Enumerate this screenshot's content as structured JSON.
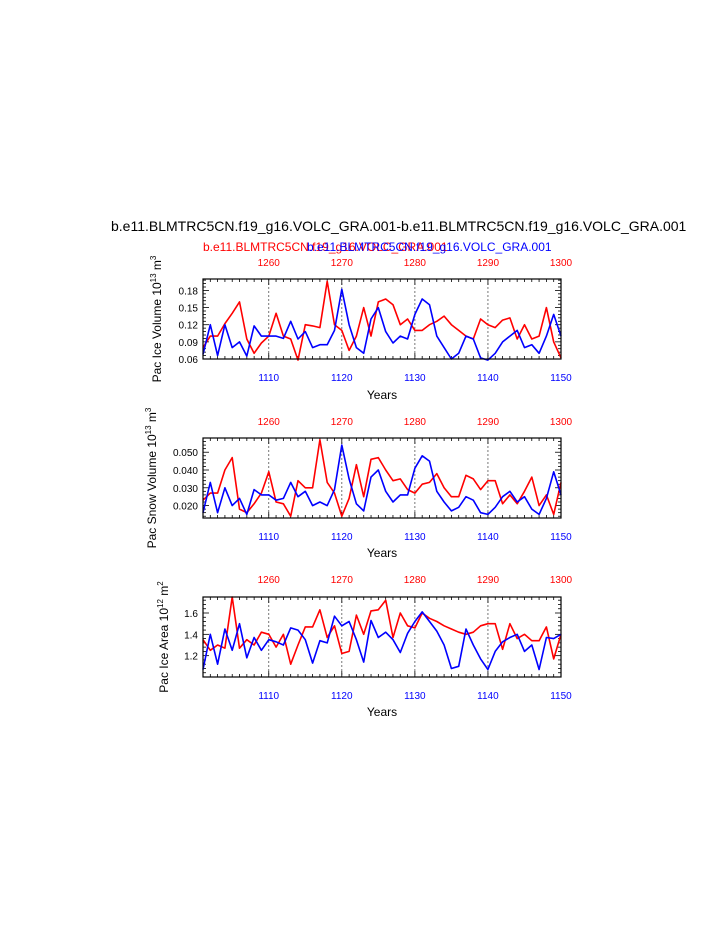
{
  "figure": {
    "title": "b.e11.BLMTRC5CN.f19_g16.VOLC_GRA.001-b.e11.BLMTRC5CN.f19_g16.VOLC_GRA.001",
    "subtitle_red": "b.e11.BLMTRC5CN.f19_g16.VOLC_GRA.001",
    "subtitle_blue": "b.e11.BLMTRC5CN.f19_g16.VOLC_GRA.001",
    "colors": {
      "red": "#ff0000",
      "blue": "#0000ff",
      "frame": "#000000",
      "grid": "#555555"
    }
  },
  "chart_data": [
    {
      "type": "line",
      "ylabel": "Pac Ice Volume 10",
      "ylabel_exp": "13",
      "ylabel_unit": " m",
      "ylabel_unit_exp": "3",
      "xlabel": "Years",
      "ylim": [
        0.06,
        0.2
      ],
      "yticks": [
        0.06,
        0.09,
        0.12,
        0.15,
        0.18
      ],
      "ytick_labels": [
        "0.06",
        "0.09",
        "0.12",
        "0.15",
        "0.18"
      ],
      "x_bottom": {
        "range": [
          1101,
          1150
        ],
        "ticks": [
          1110,
          1120,
          1130,
          1140,
          1150
        ],
        "color": "#0000ff"
      },
      "x_top": {
        "range": [
          1251,
          1300
        ],
        "ticks": [
          1260,
          1270,
          1280,
          1290,
          1300
        ],
        "color": "#ff0000"
      },
      "vgrid_at_bottom": [
        1110,
        1120,
        1130,
        1140
      ],
      "series": [
        {
          "color": "#ff0000",
          "x": [
            1101,
            1102,
            1103,
            1104,
            1105,
            1106,
            1107,
            1108,
            1109,
            1110,
            1111,
            1112,
            1113,
            1114,
            1115,
            1116,
            1117,
            1118,
            1119,
            1120,
            1121,
            1122,
            1123,
            1124,
            1125,
            1126,
            1127,
            1128,
            1129,
            1130,
            1131,
            1132,
            1133,
            1134,
            1135,
            1136,
            1137,
            1138,
            1139,
            1140,
            1141,
            1142,
            1143,
            1144,
            1145,
            1146,
            1147,
            1148,
            1149,
            1150
          ],
          "y": [
            0.08,
            0.1,
            0.1,
            0.122,
            0.14,
            0.16,
            0.095,
            0.07,
            0.088,
            0.1,
            0.14,
            0.1,
            0.095,
            0.058,
            0.12,
            0.118,
            0.115,
            0.196,
            0.12,
            0.11,
            0.075,
            0.1,
            0.15,
            0.1,
            0.16,
            0.165,
            0.155,
            0.12,
            0.13,
            0.11,
            0.11,
            0.12,
            0.126,
            0.135,
            0.12,
            0.11,
            0.1,
            0.095,
            0.13,
            0.12,
            0.115,
            0.128,
            0.132,
            0.095,
            0.12,
            0.095,
            0.1,
            0.15,
            0.09,
            0.062
          ]
        },
        {
          "color": "#0000ff",
          "x": [
            1101,
            1102,
            1103,
            1104,
            1105,
            1106,
            1107,
            1108,
            1109,
            1110,
            1111,
            1112,
            1113,
            1114,
            1115,
            1116,
            1117,
            1118,
            1119,
            1120,
            1121,
            1122,
            1123,
            1124,
            1125,
            1126,
            1127,
            1128,
            1129,
            1130,
            1131,
            1132,
            1133,
            1134,
            1135,
            1136,
            1137,
            1138,
            1139,
            1140,
            1141,
            1142,
            1143,
            1144,
            1145,
            1146,
            1147,
            1148,
            1149,
            1150
          ],
          "y": [
            0.068,
            0.12,
            0.066,
            0.12,
            0.08,
            0.09,
            0.065,
            0.118,
            0.1,
            0.1,
            0.1,
            0.096,
            0.126,
            0.095,
            0.108,
            0.08,
            0.085,
            0.085,
            0.11,
            0.182,
            0.12,
            0.08,
            0.07,
            0.13,
            0.15,
            0.108,
            0.088,
            0.1,
            0.095,
            0.138,
            0.165,
            0.155,
            0.1,
            0.08,
            0.06,
            0.07,
            0.1,
            0.095,
            0.062,
            0.058,
            0.07,
            0.09,
            0.1,
            0.11,
            0.08,
            0.085,
            0.07,
            0.1,
            0.138,
            0.1
          ]
        }
      ]
    },
    {
      "type": "line",
      "ylabel": "Pac Snow Volume 10",
      "ylabel_exp": "13",
      "ylabel_unit": " m",
      "ylabel_unit_exp": "3",
      "xlabel": "Years",
      "ylim": [
        0.013,
        0.058
      ],
      "yticks": [
        0.02,
        0.03,
        0.04,
        0.05
      ],
      "ytick_labels": [
        "0.020",
        "0.030",
        "0.040",
        "0.050"
      ],
      "x_bottom": {
        "range": [
          1101,
          1150
        ],
        "ticks": [
          1110,
          1120,
          1130,
          1140,
          1150
        ],
        "color": "#0000ff"
      },
      "x_top": {
        "range": [
          1251,
          1300
        ],
        "ticks": [
          1260,
          1270,
          1280,
          1290,
          1300
        ],
        "color": "#ff0000"
      },
      "vgrid_at_bottom": [
        1110,
        1120,
        1130,
        1140
      ],
      "series": [
        {
          "color": "#ff0000",
          "x": [
            1101,
            1102,
            1103,
            1104,
            1105,
            1106,
            1107,
            1108,
            1109,
            1110,
            1111,
            1112,
            1113,
            1114,
            1115,
            1116,
            1117,
            1118,
            1119,
            1120,
            1121,
            1122,
            1123,
            1124,
            1125,
            1126,
            1127,
            1128,
            1129,
            1130,
            1131,
            1132,
            1133,
            1134,
            1135,
            1136,
            1137,
            1138,
            1139,
            1140,
            1141,
            1142,
            1143,
            1144,
            1145,
            1146,
            1147,
            1148,
            1149,
            1150
          ],
          "y": [
            0.023,
            0.027,
            0.027,
            0.04,
            0.047,
            0.018,
            0.016,
            0.021,
            0.027,
            0.039,
            0.022,
            0.021,
            0.014,
            0.034,
            0.03,
            0.03,
            0.057,
            0.033,
            0.027,
            0.014,
            0.024,
            0.043,
            0.025,
            0.046,
            0.047,
            0.04,
            0.034,
            0.035,
            0.029,
            0.027,
            0.032,
            0.033,
            0.038,
            0.03,
            0.025,
            0.025,
            0.037,
            0.035,
            0.029,
            0.034,
            0.034,
            0.021,
            0.026,
            0.021,
            0.028,
            0.036,
            0.02,
            0.026,
            0.015,
            0.033
          ]
        },
        {
          "color": "#0000ff",
          "x": [
            1101,
            1102,
            1103,
            1104,
            1105,
            1106,
            1107,
            1108,
            1109,
            1110,
            1111,
            1112,
            1113,
            1114,
            1115,
            1116,
            1117,
            1118,
            1119,
            1120,
            1121,
            1122,
            1123,
            1124,
            1125,
            1126,
            1127,
            1128,
            1129,
            1130,
            1131,
            1132,
            1133,
            1134,
            1135,
            1136,
            1137,
            1138,
            1139,
            1140,
            1141,
            1142,
            1143,
            1144,
            1145,
            1146,
            1147,
            1148,
            1149,
            1150
          ],
          "y": [
            0.016,
            0.033,
            0.016,
            0.03,
            0.02,
            0.024,
            0.015,
            0.029,
            0.026,
            0.026,
            0.023,
            0.024,
            0.033,
            0.025,
            0.028,
            0.02,
            0.022,
            0.02,
            0.029,
            0.054,
            0.035,
            0.021,
            0.017,
            0.036,
            0.04,
            0.028,
            0.022,
            0.026,
            0.026,
            0.041,
            0.048,
            0.045,
            0.028,
            0.022,
            0.017,
            0.019,
            0.025,
            0.023,
            0.016,
            0.015,
            0.019,
            0.025,
            0.028,
            0.022,
            0.025,
            0.018,
            0.015,
            0.024,
            0.039,
            0.026
          ]
        }
      ]
    },
    {
      "type": "line",
      "ylabel": "Pac Ice Area 10",
      "ylabel_exp": "12",
      "ylabel_unit": " m",
      "ylabel_unit_exp": "2",
      "xlabel": "Years",
      "ylim": [
        1.0,
        1.75
      ],
      "yticks": [
        1.2,
        1.4,
        1.6
      ],
      "ytick_labels": [
        "1.2",
        "1.4",
        "1.6"
      ],
      "x_bottom": {
        "range": [
          1101,
          1150
        ],
        "ticks": [
          1110,
          1120,
          1130,
          1140,
          1150
        ],
        "color": "#0000ff"
      },
      "x_top": {
        "range": [
          1251,
          1300
        ],
        "ticks": [
          1260,
          1270,
          1280,
          1290,
          1300
        ],
        "color": "#ff0000"
      },
      "vgrid_at_bottom": [
        1110,
        1120,
        1130,
        1140
      ],
      "series": [
        {
          "color": "#ff0000",
          "x": [
            1101,
            1102,
            1103,
            1104,
            1105,
            1106,
            1107,
            1108,
            1109,
            1110,
            1111,
            1112,
            1113,
            1114,
            1115,
            1116,
            1117,
            1118,
            1119,
            1120,
            1121,
            1122,
            1123,
            1124,
            1125,
            1126,
            1127,
            1128,
            1129,
            1130,
            1131,
            1132,
            1133,
            1134,
            1135,
            1136,
            1137,
            1138,
            1139,
            1140,
            1141,
            1142,
            1143,
            1144,
            1145,
            1146,
            1147,
            1148,
            1149,
            1150
          ],
          "y": [
            1.35,
            1.25,
            1.3,
            1.27,
            1.75,
            1.27,
            1.35,
            1.3,
            1.42,
            1.4,
            1.28,
            1.4,
            1.12,
            1.3,
            1.47,
            1.47,
            1.63,
            1.37,
            1.48,
            1.22,
            1.24,
            1.58,
            1.4,
            1.62,
            1.63,
            1.72,
            1.37,
            1.6,
            1.48,
            1.46,
            1.6,
            1.55,
            1.52,
            1.48,
            1.45,
            1.42,
            1.4,
            1.42,
            1.48,
            1.5,
            1.5,
            1.26,
            1.5,
            1.36,
            1.4,
            1.34,
            1.34,
            1.47,
            1.17,
            1.4
          ]
        },
        {
          "color": "#0000ff",
          "x": [
            1101,
            1102,
            1103,
            1104,
            1105,
            1106,
            1107,
            1108,
            1109,
            1110,
            1111,
            1112,
            1113,
            1114,
            1115,
            1116,
            1117,
            1118,
            1119,
            1120,
            1121,
            1122,
            1123,
            1124,
            1125,
            1126,
            1127,
            1128,
            1129,
            1130,
            1131,
            1132,
            1133,
            1134,
            1135,
            1136,
            1137,
            1138,
            1139,
            1140,
            1141,
            1142,
            1143,
            1144,
            1145,
            1146,
            1147,
            1148,
            1149,
            1150
          ],
          "y": [
            1.07,
            1.4,
            1.12,
            1.45,
            1.25,
            1.5,
            1.18,
            1.37,
            1.25,
            1.35,
            1.33,
            1.3,
            1.46,
            1.44,
            1.35,
            1.13,
            1.34,
            1.32,
            1.57,
            1.48,
            1.52,
            1.35,
            1.14,
            1.53,
            1.37,
            1.42,
            1.35,
            1.23,
            1.41,
            1.52,
            1.61,
            1.52,
            1.43,
            1.3,
            1.08,
            1.1,
            1.45,
            1.3,
            1.17,
            1.07,
            1.24,
            1.33,
            1.37,
            1.4,
            1.24,
            1.3,
            1.07,
            1.37,
            1.36,
            1.4
          ]
        }
      ]
    }
  ]
}
